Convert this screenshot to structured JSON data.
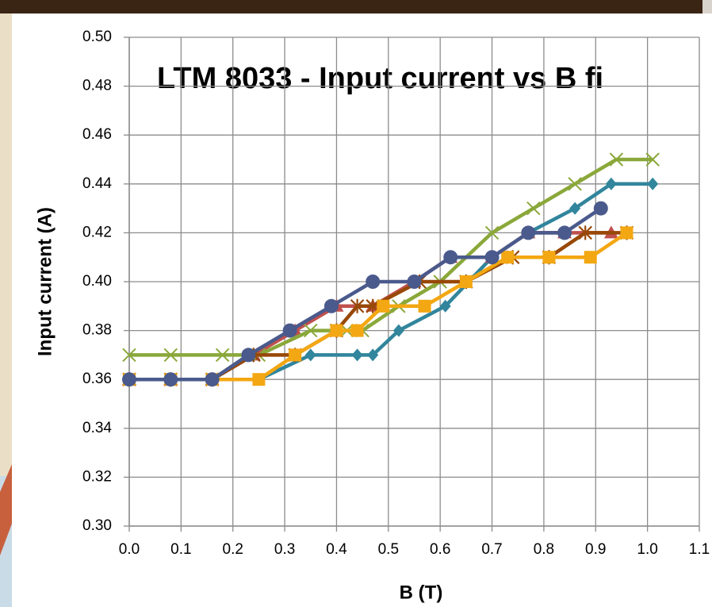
{
  "chart_data": {
    "type": "line",
    "title": "LTM 8033 - Input current vs B fi",
    "x_label": "B (T)",
    "y_label": "Input current (A)",
    "xlim": [
      0,
      1.1
    ],
    "ylim": [
      0.3,
      0.5
    ],
    "xticks": [
      {
        "value": 0,
        "label": "0.0"
      },
      0.1,
      0.2,
      0.3,
      0.4,
      0.5,
      0.6,
      0.7,
      0.8,
      0.9,
      {
        "value": 1,
        "label": "1.0"
      },
      1.1
    ],
    "yticks": [
      {
        "value": 0.3,
        "label": "0.30"
      },
      0.32,
      0.34,
      0.36,
      0.38,
      {
        "value": 0.4,
        "label": "0.40"
      },
      0.42,
      0.44,
      0.46,
      0.48,
      {
        "value": 0.5,
        "label": "0.50"
      }
    ],
    "grid": true,
    "series": [
      {
        "color": "#31859c",
        "marker": "diamond",
        "x": [
          0,
          0.08,
          0.16,
          0.25,
          0.35,
          0.44,
          0.47,
          0.52,
          0.61,
          0.7,
          0.77,
          0.86,
          0.93,
          1.01
        ],
        "values": [
          0.36,
          0.36,
          0.36,
          0.36,
          0.37,
          0.37,
          0.37,
          0.38,
          0.39,
          0.41,
          0.42,
          0.43,
          0.44,
          0.44
        ]
      },
      {
        "color": "#c0504d",
        "marker": "triangle",
        "x": [
          0,
          0.08,
          0.16,
          0.24,
          0.32,
          0.4,
          0.47,
          0.55,
          0.62,
          0.7,
          0.77,
          0.84,
          0.93
        ],
        "values": [
          0.36,
          0.36,
          0.36,
          0.37,
          0.38,
          0.39,
          0.39,
          0.4,
          0.41,
          0.41,
          0.42,
          0.42,
          0.42
        ]
      },
      {
        "color": "#8aa83a",
        "marker": "x",
        "x": [
          0,
          0.08,
          0.18,
          0.25,
          0.35,
          0.42,
          0.45,
          0.52,
          0.6,
          0.7,
          0.78,
          0.86,
          0.94,
          1.01
        ],
        "values": [
          0.37,
          0.37,
          0.37,
          0.37,
          0.38,
          0.38,
          0.38,
          0.39,
          0.4,
          0.42,
          0.43,
          0.44,
          0.45,
          0.45
        ]
      },
      {
        "color": "#984807",
        "marker": "star",
        "x": [
          0,
          0.08,
          0.16,
          0.24,
          0.32,
          0.4,
          0.44,
          0.47,
          0.56,
          0.65,
          0.74,
          0.81,
          0.88,
          0.96
        ],
        "values": [
          0.36,
          0.36,
          0.36,
          0.37,
          0.37,
          0.38,
          0.39,
          0.39,
          0.4,
          0.4,
          0.41,
          0.41,
          0.42,
          0.42
        ]
      },
      {
        "color": "#f3a712",
        "marker": "square",
        "x": [
          0,
          0.08,
          0.16,
          0.25,
          0.32,
          0.4,
          0.44,
          0.49,
          0.57,
          0.65,
          0.73,
          0.81,
          0.89,
          0.96
        ],
        "values": [
          0.36,
          0.36,
          0.36,
          0.36,
          0.37,
          0.38,
          0.38,
          0.39,
          0.39,
          0.4,
          0.41,
          0.41,
          0.41,
          0.42
        ]
      },
      {
        "color": "#4a5a8c",
        "marker": "circle",
        "x": [
          0,
          0.08,
          0.16,
          0.23,
          0.31,
          0.39,
          0.47,
          0.55,
          0.62,
          0.7,
          0.77,
          0.84,
          0.91
        ],
        "values": [
          0.36,
          0.36,
          0.36,
          0.37,
          0.38,
          0.39,
          0.4,
          0.4,
          0.41,
          0.41,
          0.42,
          0.42,
          0.43
        ]
      }
    ]
  }
}
